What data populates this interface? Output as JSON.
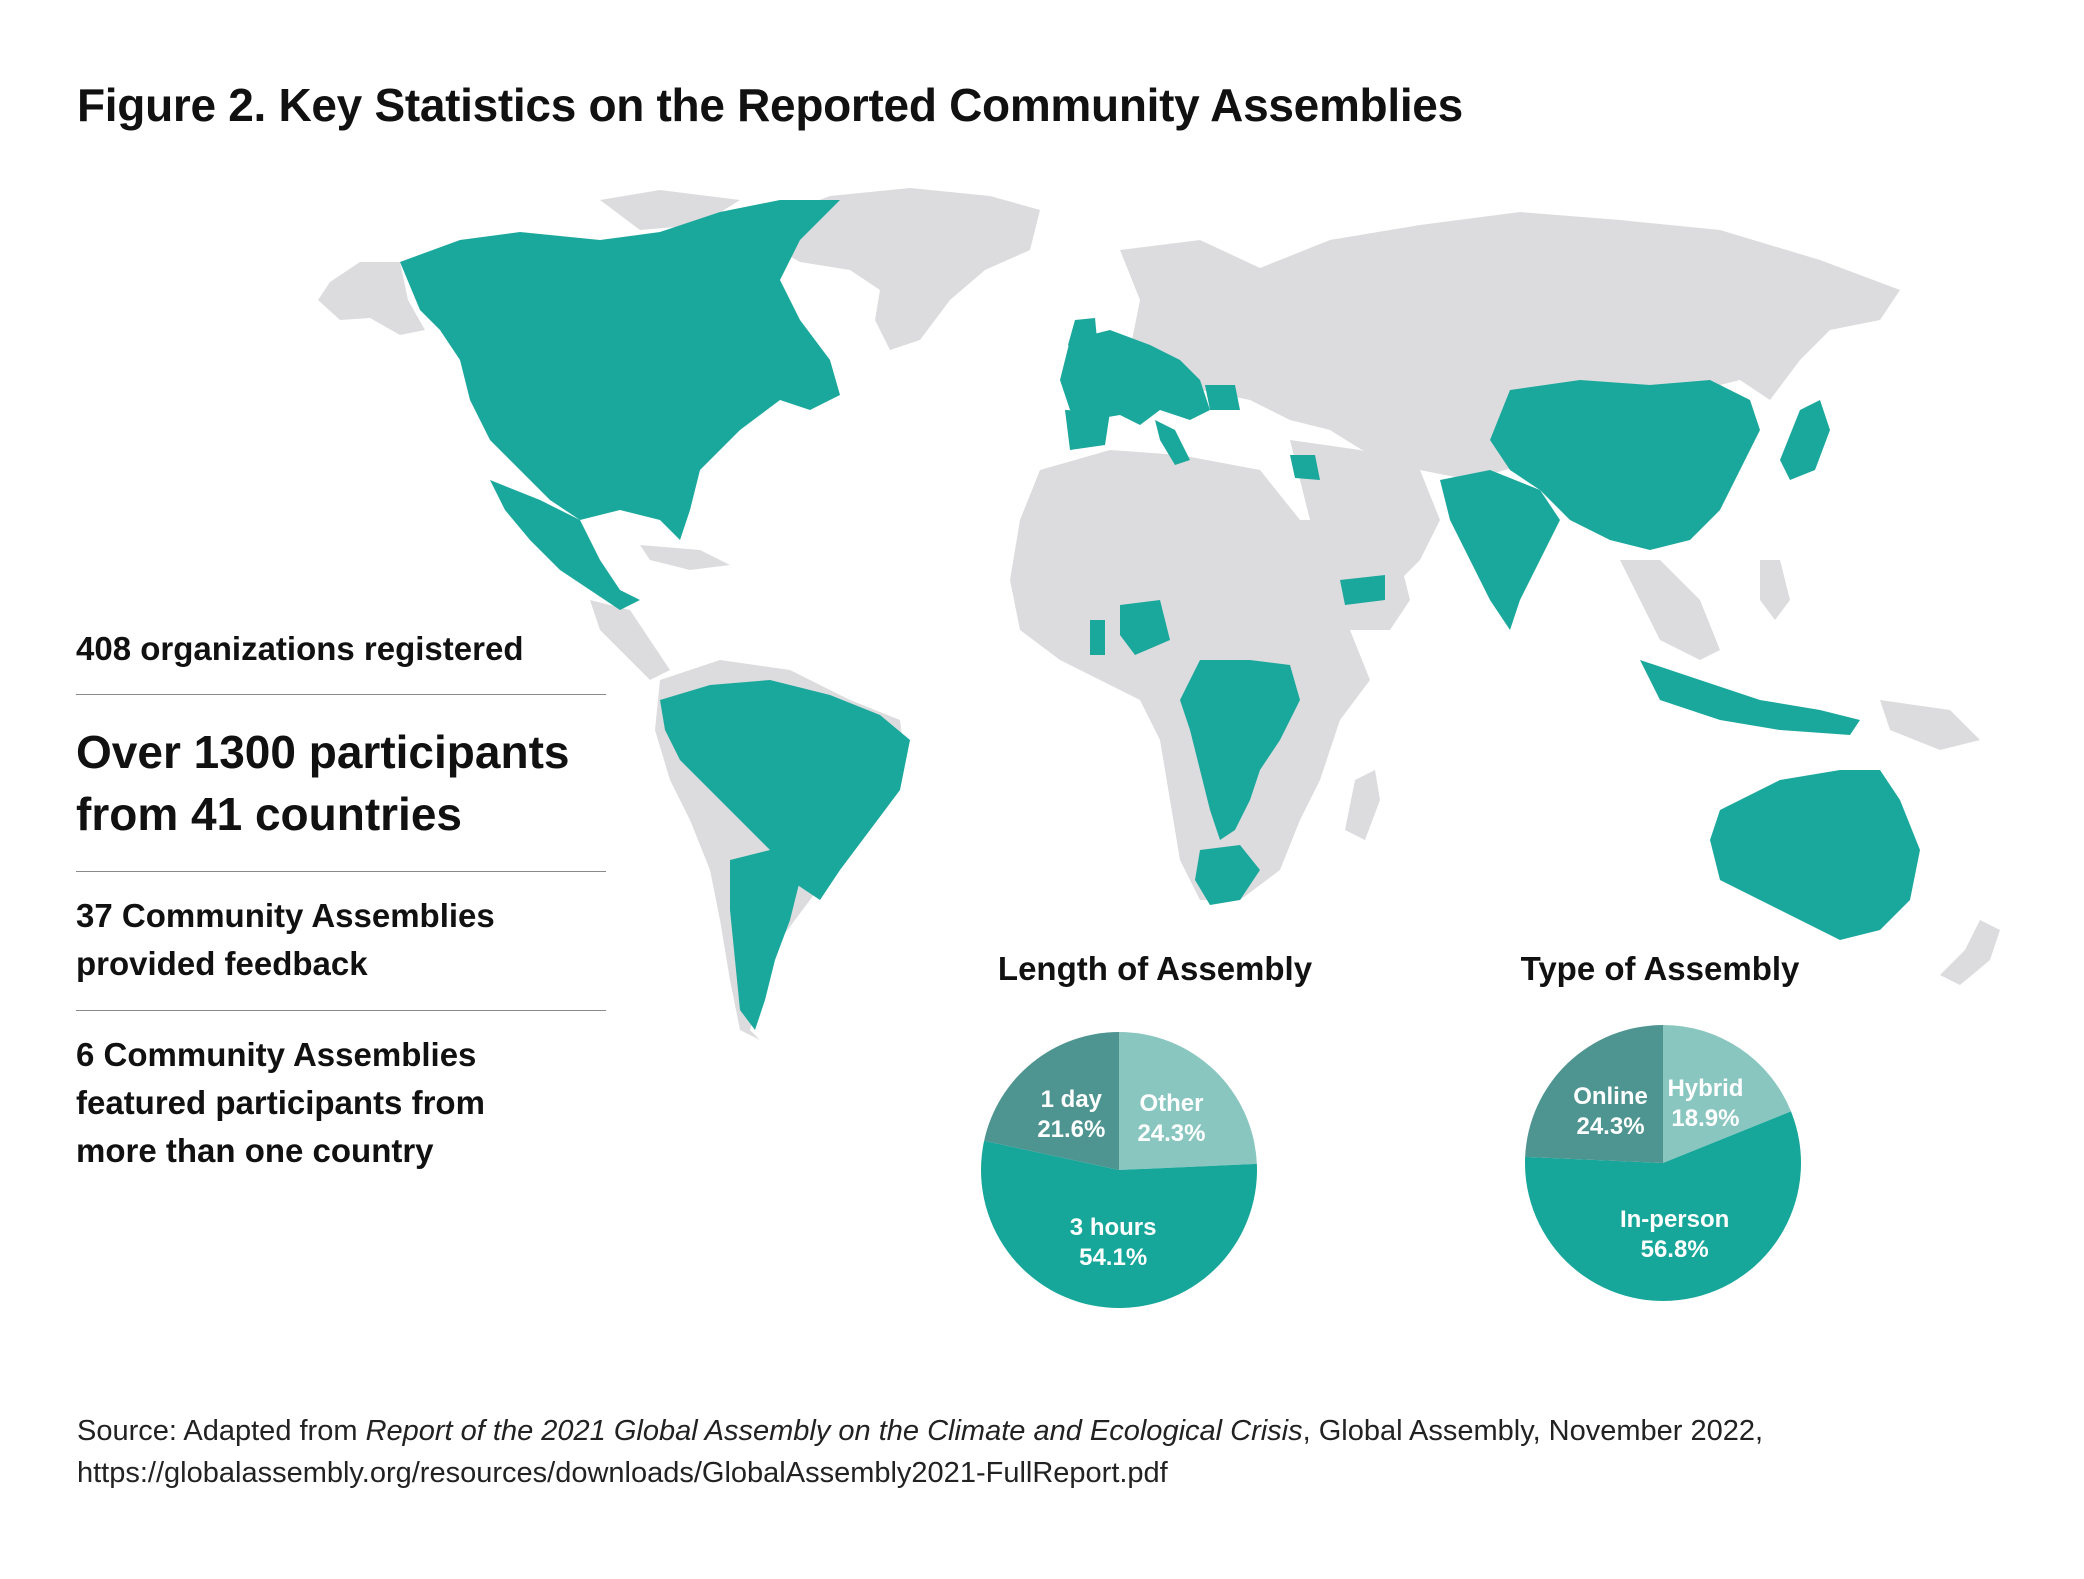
{
  "title": "Figure 2. Key Statistics on the Reported Community Assemblies",
  "colors": {
    "highlight_teal": "#1aa89c",
    "land_gray": "#dcdcde",
    "slice_dark": "#4e9490",
    "slice_light": "#89c6c0",
    "slice_main": "#16a79a"
  },
  "stats": {
    "organizations": "408 organizations registered",
    "participants_line1": "Over 1300 participants",
    "participants_line2": "from 41 countries",
    "feedback_line1": "37 Community Assemblies",
    "feedback_line2": "provided feedback",
    "multi_line1": "6 Community Assemblies",
    "multi_line2": "featured participants from",
    "multi_line3": "more than one country"
  },
  "chart_data": [
    {
      "type": "pie",
      "title": "Length of Assembly",
      "slices": [
        {
          "label": "Other",
          "value": 24.3,
          "value_label": "24.3%",
          "color": "#89c6c0"
        },
        {
          "label": "3 hours",
          "value": 54.1,
          "value_label": "54.1%",
          "color": "#16a79a"
        },
        {
          "label": "1 day",
          "value": 21.6,
          "value_label": "21.6%",
          "color": "#4e9490"
        }
      ]
    },
    {
      "type": "pie",
      "title": "Type of Assembly",
      "slices": [
        {
          "label": "Hybrid",
          "value": 18.9,
          "value_label": "18.9%",
          "color": "#89c6c0"
        },
        {
          "label": "In-person",
          "value": 56.8,
          "value_label": "56.8%",
          "color": "#16a79a"
        },
        {
          "label": "Online",
          "value": 24.3,
          "value_label": "24.3%",
          "color": "#4e9490"
        }
      ]
    }
  ],
  "source": {
    "prefix": "Source: Adapted from ",
    "report_title": "Report of the 2021 Global Assembly on the Climate and Ecological Crisis",
    "suffix": ", Global Assembly, November 2022, https://globalassembly.org/resources/downloads/GlobalAssembly2021-FullReport.pdf"
  }
}
